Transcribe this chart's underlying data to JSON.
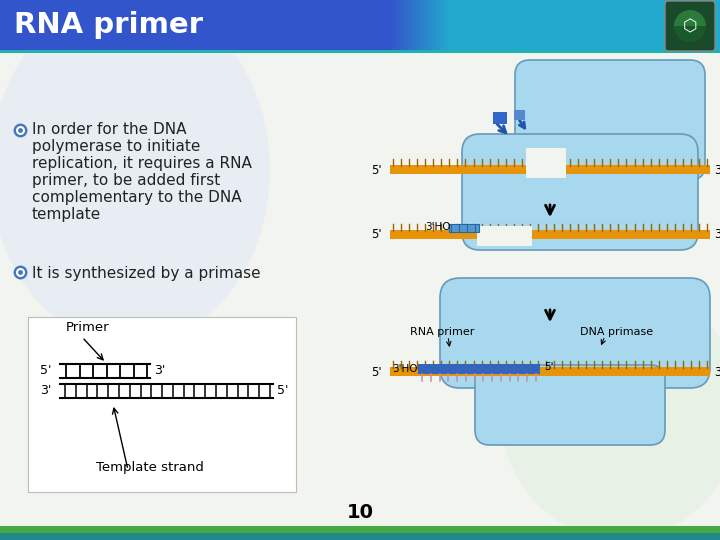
{
  "title": "RNA primer",
  "title_color": "#FFFFFF",
  "bg_color": "#F0F4F0",
  "bullet1_lines": [
    "In order for the DNA",
    "polymerase to initiate",
    "replication, it requires a RNA",
    "primer, to be added first",
    "complementary to the DNA",
    "template"
  ],
  "bullet2": "It is synthesized by a primase",
  "page_number": "10",
  "dna_orange": "#E8940A",
  "dna_blue_light": "#A8D8EE",
  "dna_blue_mid": "#7BB8D8",
  "primer_blue": "#4488BB",
  "primer_stripe": "#CC88AA",
  "text_color": "#222222",
  "tick_dark": "#996600",
  "title_blue_left": "#3355CC",
  "title_blue_right": "#22AACC",
  "header_teal": "#20B0B0",
  "bottom_green": "#44AA44",
  "bottom_teal": "#228888"
}
